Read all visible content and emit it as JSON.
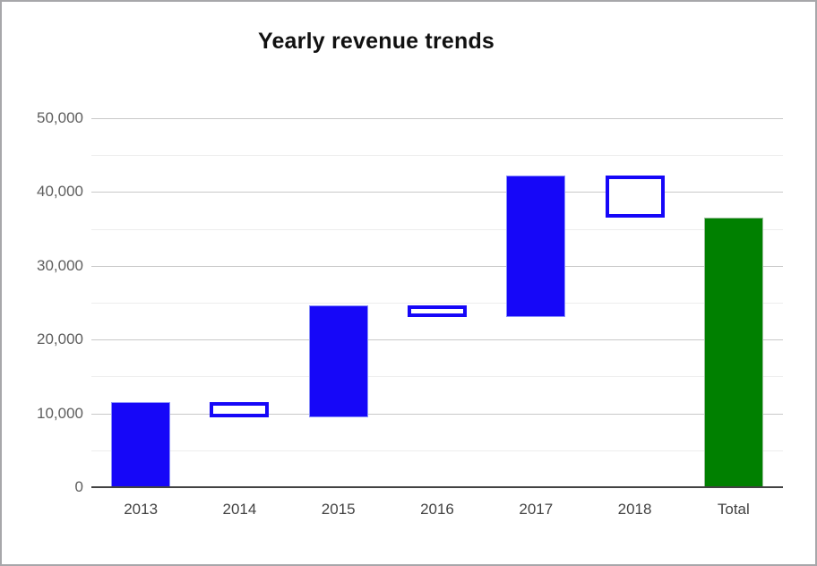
{
  "window": {
    "background": "#ffffff",
    "border_color": "#a7a7aa"
  },
  "chart_data": {
    "type": "bar",
    "subtype": "waterfall",
    "title": "Yearly revenue trends",
    "xlabel": "",
    "ylabel": "",
    "legend": "none",
    "grid": true,
    "categories": [
      "2013",
      "2014",
      "2015",
      "2016",
      "2017",
      "2018",
      "Total"
    ],
    "segments": [
      {
        "label": "2013",
        "start": 0,
        "end": 11500,
        "direction": "increase",
        "style": "filled-blue"
      },
      {
        "label": "2014",
        "start": 11500,
        "end": 9500,
        "direction": "decrease",
        "style": "outlined-blue"
      },
      {
        "label": "2015",
        "start": 9500,
        "end": 24600,
        "direction": "increase",
        "style": "filled-blue"
      },
      {
        "label": "2016",
        "start": 24600,
        "end": 23100,
        "direction": "decrease",
        "style": "outlined-blue"
      },
      {
        "label": "2017",
        "start": 23100,
        "end": 42200,
        "direction": "increase",
        "style": "filled-blue"
      },
      {
        "label": "2018",
        "start": 42200,
        "end": 36500,
        "direction": "decrease",
        "style": "outlined-blue"
      },
      {
        "label": "Total",
        "start": 0,
        "end": 36500,
        "direction": "total",
        "style": "filled-green"
      }
    ],
    "y_axis": {
      "min": 0,
      "max": 50000,
      "major_step": 10000,
      "minor_step": 5000,
      "tick_labels": [
        "0",
        "10,000",
        "20,000",
        "30,000",
        "40,000",
        "50,000"
      ]
    },
    "colors": {
      "increase_fill": "#1607f8",
      "decrease_outline": "#1607f8",
      "decrease_fill": "#ffffff",
      "total_fill": "#008000",
      "major_gridline": "#c9c9c9",
      "minor_gridline": "#ededed",
      "axis_line": "#424242"
    }
  }
}
